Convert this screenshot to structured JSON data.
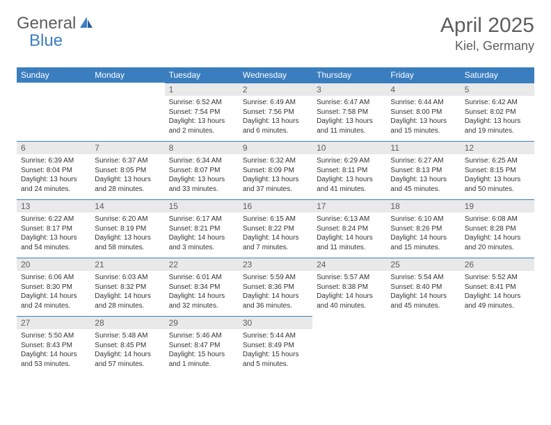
{
  "brand": {
    "part1": "General",
    "part2": "Blue"
  },
  "title": "April 2025",
  "location": "Kiel, Germany",
  "colors": {
    "header_bg": "#3a7ebf",
    "header_text": "#ffffff",
    "daynum_bg": "#e9e9e9",
    "daynum_border": "#3a7ebf",
    "text": "#333333",
    "muted": "#5d5d5d"
  },
  "weekdays": [
    "Sunday",
    "Monday",
    "Tuesday",
    "Wednesday",
    "Thursday",
    "Friday",
    "Saturday"
  ],
  "weeks": [
    [
      null,
      null,
      {
        "n": "1",
        "sr": "6:52 AM",
        "ss": "7:54 PM",
        "dl": "13 hours and 2 minutes."
      },
      {
        "n": "2",
        "sr": "6:49 AM",
        "ss": "7:56 PM",
        "dl": "13 hours and 6 minutes."
      },
      {
        "n": "3",
        "sr": "6:47 AM",
        "ss": "7:58 PM",
        "dl": "13 hours and 11 minutes."
      },
      {
        "n": "4",
        "sr": "6:44 AM",
        "ss": "8:00 PM",
        "dl": "13 hours and 15 minutes."
      },
      {
        "n": "5",
        "sr": "6:42 AM",
        "ss": "8:02 PM",
        "dl": "13 hours and 19 minutes."
      }
    ],
    [
      {
        "n": "6",
        "sr": "6:39 AM",
        "ss": "8:04 PM",
        "dl": "13 hours and 24 minutes."
      },
      {
        "n": "7",
        "sr": "6:37 AM",
        "ss": "8:05 PM",
        "dl": "13 hours and 28 minutes."
      },
      {
        "n": "8",
        "sr": "6:34 AM",
        "ss": "8:07 PM",
        "dl": "13 hours and 33 minutes."
      },
      {
        "n": "9",
        "sr": "6:32 AM",
        "ss": "8:09 PM",
        "dl": "13 hours and 37 minutes."
      },
      {
        "n": "10",
        "sr": "6:29 AM",
        "ss": "8:11 PM",
        "dl": "13 hours and 41 minutes."
      },
      {
        "n": "11",
        "sr": "6:27 AM",
        "ss": "8:13 PM",
        "dl": "13 hours and 45 minutes."
      },
      {
        "n": "12",
        "sr": "6:25 AM",
        "ss": "8:15 PM",
        "dl": "13 hours and 50 minutes."
      }
    ],
    [
      {
        "n": "13",
        "sr": "6:22 AM",
        "ss": "8:17 PM",
        "dl": "13 hours and 54 minutes."
      },
      {
        "n": "14",
        "sr": "6:20 AM",
        "ss": "8:19 PM",
        "dl": "13 hours and 58 minutes."
      },
      {
        "n": "15",
        "sr": "6:17 AM",
        "ss": "8:21 PM",
        "dl": "14 hours and 3 minutes."
      },
      {
        "n": "16",
        "sr": "6:15 AM",
        "ss": "8:22 PM",
        "dl": "14 hours and 7 minutes."
      },
      {
        "n": "17",
        "sr": "6:13 AM",
        "ss": "8:24 PM",
        "dl": "14 hours and 11 minutes."
      },
      {
        "n": "18",
        "sr": "6:10 AM",
        "ss": "8:26 PM",
        "dl": "14 hours and 15 minutes."
      },
      {
        "n": "19",
        "sr": "6:08 AM",
        "ss": "8:28 PM",
        "dl": "14 hours and 20 minutes."
      }
    ],
    [
      {
        "n": "20",
        "sr": "6:06 AM",
        "ss": "8:30 PM",
        "dl": "14 hours and 24 minutes."
      },
      {
        "n": "21",
        "sr": "6:03 AM",
        "ss": "8:32 PM",
        "dl": "14 hours and 28 minutes."
      },
      {
        "n": "22",
        "sr": "6:01 AM",
        "ss": "8:34 PM",
        "dl": "14 hours and 32 minutes."
      },
      {
        "n": "23",
        "sr": "5:59 AM",
        "ss": "8:36 PM",
        "dl": "14 hours and 36 minutes."
      },
      {
        "n": "24",
        "sr": "5:57 AM",
        "ss": "8:38 PM",
        "dl": "14 hours and 40 minutes."
      },
      {
        "n": "25",
        "sr": "5:54 AM",
        "ss": "8:40 PM",
        "dl": "14 hours and 45 minutes."
      },
      {
        "n": "26",
        "sr": "5:52 AM",
        "ss": "8:41 PM",
        "dl": "14 hours and 49 minutes."
      }
    ],
    [
      {
        "n": "27",
        "sr": "5:50 AM",
        "ss": "8:43 PM",
        "dl": "14 hours and 53 minutes."
      },
      {
        "n": "28",
        "sr": "5:48 AM",
        "ss": "8:45 PM",
        "dl": "14 hours and 57 minutes."
      },
      {
        "n": "29",
        "sr": "5:46 AM",
        "ss": "8:47 PM",
        "dl": "15 hours and 1 minute."
      },
      {
        "n": "30",
        "sr": "5:44 AM",
        "ss": "8:49 PM",
        "dl": "15 hours and 5 minutes."
      },
      null,
      null,
      null
    ]
  ]
}
